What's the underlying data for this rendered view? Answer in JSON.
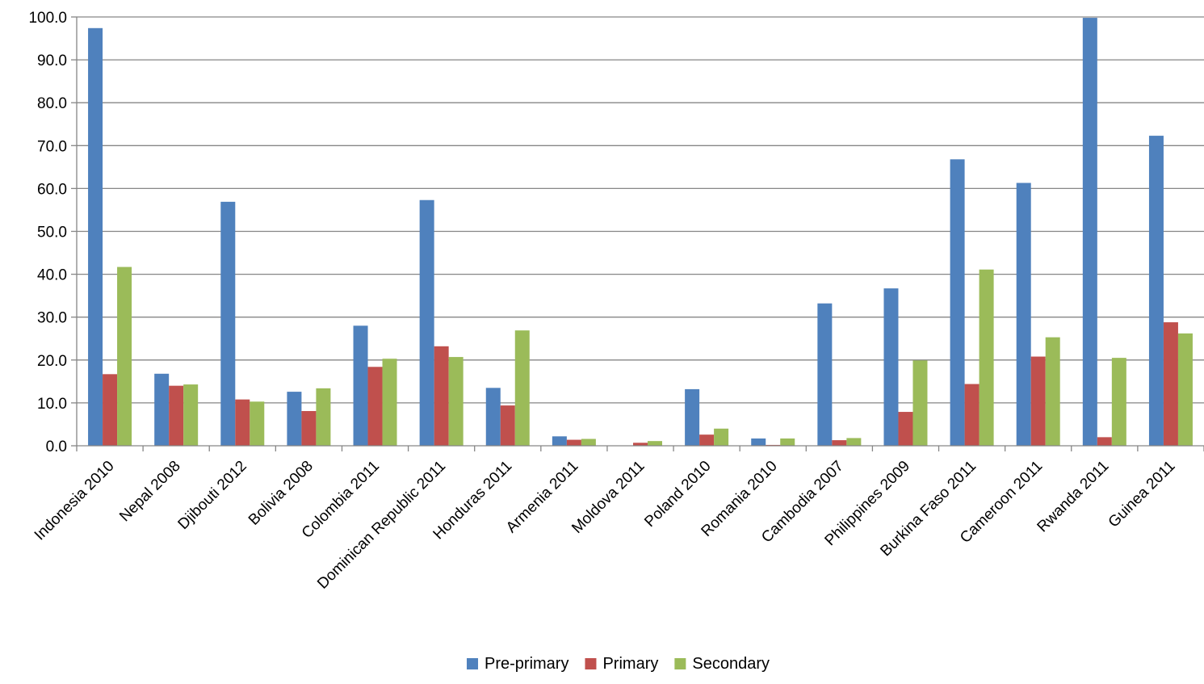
{
  "chart_data": {
    "type": "bar",
    "title": "",
    "xlabel": "",
    "ylabel": "",
    "ylim": [
      0,
      100
    ],
    "yticks": [
      0,
      10,
      20,
      30,
      40,
      50,
      60,
      70,
      80,
      90,
      100
    ],
    "ytick_labels": [
      "0.0",
      "10.0",
      "20.0",
      "30.0",
      "40.0",
      "50.0",
      "60.0",
      "70.0",
      "80.0",
      "90.0",
      "100.0"
    ],
    "grid": true,
    "legend_position": "bottom",
    "categories": [
      "Indonesia 2010",
      "Nepal 2008",
      "Djibouti 2012",
      "Bolivia 2008",
      "Colombia 2011",
      "Dominican Republic 2011",
      "Honduras 2011",
      "Armenia 2011",
      "Moldova 2011",
      "Poland 2010",
      "Romania 2010",
      "Cambodia 2007",
      "Philippines 2009",
      "Burkina Faso 2011",
      "Cameroon 2011",
      "Rwanda 2011",
      "Guinea 2011"
    ],
    "series": [
      {
        "name": "Pre-primary",
        "color": "#4F81BD",
        "values": [
          97.4,
          16.8,
          56.9,
          12.6,
          28.0,
          57.3,
          13.5,
          2.2,
          0.0,
          13.2,
          1.7,
          33.2,
          36.7,
          66.8,
          61.3,
          99.8,
          72.3
        ]
      },
      {
        "name": "Primary",
        "color": "#C0504D",
        "values": [
          16.7,
          14.0,
          10.8,
          8.1,
          18.4,
          23.2,
          9.4,
          1.4,
          0.7,
          2.6,
          0.2,
          1.3,
          7.9,
          14.4,
          20.8,
          2.0,
          28.8
        ]
      },
      {
        "name": "Secondary",
        "color": "#9BBB59",
        "values": [
          41.7,
          14.3,
          10.3,
          13.4,
          20.3,
          20.7,
          26.9,
          1.6,
          1.1,
          4.0,
          1.7,
          1.8,
          19.9,
          41.1,
          25.3,
          20.5,
          26.2
        ]
      }
    ]
  }
}
